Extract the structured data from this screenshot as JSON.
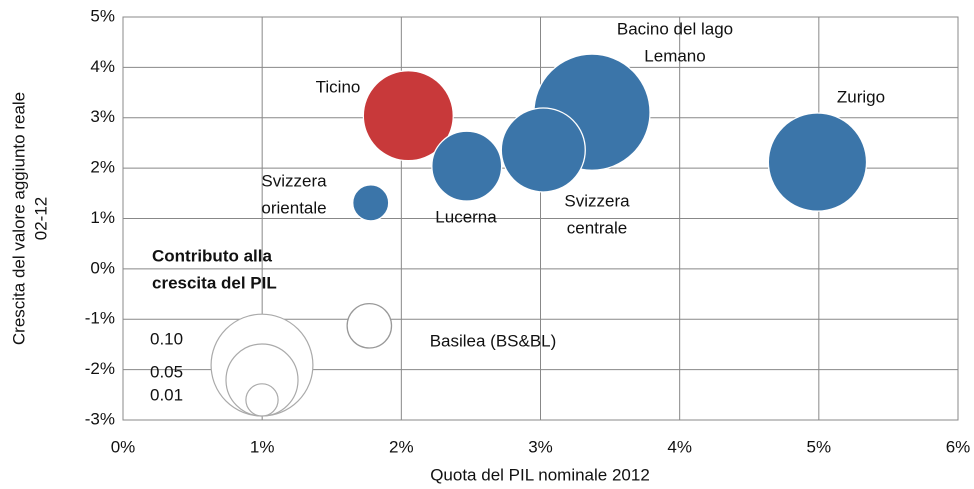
{
  "chart_data": {
    "type": "bubble",
    "xlabel": "Quota del PIL nominale 2012",
    "ylabel": [
      "Crescita del valore aggiunto reale",
      "02-12"
    ],
    "categories": [
      [
        "Svizzera",
        "orientale"
      ],
      [
        "Ticino"
      ],
      [
        "Lucerna"
      ],
      [
        "Bacino del lago",
        "Lemano"
      ],
      [
        "Svizzera",
        "centrale"
      ],
      [
        "Zurigo"
      ],
      [
        "Basilea (BS&BL)"
      ]
    ],
    "x": [
      1.78,
      2.05,
      2.47,
      3.37,
      3.02,
      4.99,
      1.77
    ],
    "values": [
      1.31,
      3.04,
      2.04,
      3.11,
      2.36,
      2.12,
      -1.13
    ],
    "sizes": [
      0.0125,
      0.078,
      0.047,
      0.13,
      0.068,
      0.093,
      0.019
    ],
    "colors": [
      "#3b75a9",
      "#c8393a",
      "#3b75a9",
      "#3b75a9",
      "#3b75a9",
      "#3b75a9",
      "#ffffff"
    ],
    "xlim": [
      0,
      6
    ],
    "xticks": [
      {
        "value": 0,
        "label": "0%"
      },
      {
        "value": 1,
        "label": "1%"
      },
      {
        "value": 2,
        "label": "2%"
      },
      {
        "value": 3,
        "label": "3%"
      },
      {
        "value": 4,
        "label": "4%"
      },
      {
        "value": 5,
        "label": "5%"
      },
      {
        "value": 6,
        "label": "6%"
      }
    ],
    "ylim": [
      -3,
      5
    ],
    "yticks": [
      {
        "value": -3,
        "label": "-3%"
      },
      {
        "value": -2,
        "label": "-2%"
      },
      {
        "value": -1,
        "label": "-1%"
      },
      {
        "value": 0,
        "label": "0%"
      },
      {
        "value": 1,
        "label": "1%"
      },
      {
        "value": 2,
        "label": "2%"
      },
      {
        "value": 3,
        "label": "3%"
      },
      {
        "value": 4,
        "label": "4%"
      },
      {
        "value": 5,
        "label": "5%"
      }
    ],
    "grid": true,
    "size_legend": {
      "title": [
        "Contributo alla",
        "crescita del PIL"
      ],
      "sizes": [
        {
          "value": 0.1,
          "label": "0.10"
        },
        {
          "value": 0.05,
          "label": "0.05"
        },
        {
          "value": 0.01,
          "label": "0.01"
        }
      ]
    }
  }
}
